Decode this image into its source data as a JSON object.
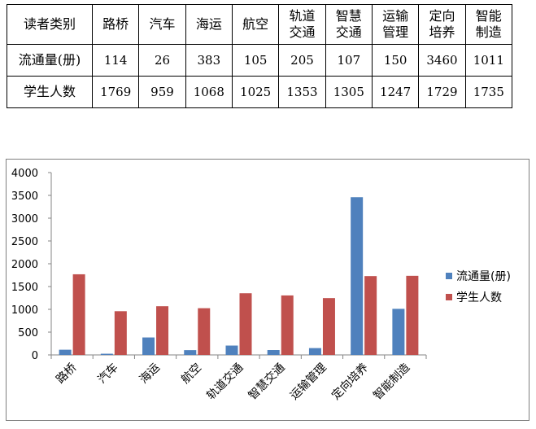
{
  "table": {
    "header_label": "读者类别",
    "columns": [
      "路桥",
      "汽车",
      "海运",
      "航空",
      "轨道交通",
      "智慧交通",
      "运输管理",
      "定向培养",
      "智能制造"
    ],
    "rows": [
      {
        "label": "流通量(册)",
        "values": [
          "114",
          "26",
          "383",
          "105",
          "205",
          "107",
          "150",
          "3460",
          "1011"
        ]
      },
      {
        "label": "学生人数",
        "values": [
          "1769",
          "959",
          "1068",
          "1025",
          "1353",
          "1305",
          "1247",
          "1729",
          "1735"
        ]
      }
    ]
  },
  "chart_data": {
    "type": "bar",
    "categories": [
      "路桥",
      "汽车",
      "海运",
      "航空",
      "轨道交通",
      "智慧交通",
      "运输管理",
      "定向培养",
      "智能制造"
    ],
    "series": [
      {
        "name": "流通量(册)",
        "color": "#4f81bd",
        "values": [
          114,
          26,
          383,
          105,
          205,
          107,
          150,
          3460,
          1011
        ]
      },
      {
        "name": "学生人数",
        "color": "#c0504d",
        "values": [
          1769,
          959,
          1068,
          1025,
          1353,
          1305,
          1247,
          1729,
          1735
        ]
      }
    ],
    "ylim": [
      0,
      4000
    ],
    "yticks": [
      0,
      500,
      1000,
      1500,
      2000,
      2500,
      3000,
      3500,
      4000
    ],
    "grid": false,
    "legend": "right",
    "title": "",
    "xlabel": "",
    "ylabel": ""
  }
}
